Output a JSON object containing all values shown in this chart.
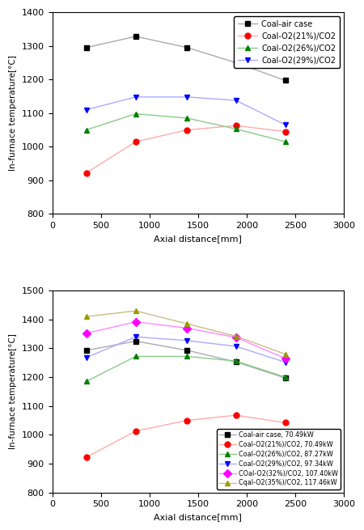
{
  "top_chart": {
    "x": [
      350,
      860,
      1390,
      1890,
      2400
    ],
    "series": [
      {
        "label": "Coal-air case",
        "line_color": "#aaaaaa",
        "marker": "s",
        "marker_fc": "black",
        "marker_ec": "black",
        "values": [
          1295,
          1328,
          1295,
          1250,
          1197
        ]
      },
      {
        "label": "Coal-O2(21%)/CO2",
        "line_color": "#ffaaaa",
        "marker": "o",
        "marker_fc": "red",
        "marker_ec": "red",
        "values": [
          922,
          1015,
          1050,
          1063,
          1045
        ]
      },
      {
        "label": "Coal-O2(26%)/CO2",
        "line_color": "#88cc88",
        "marker": "^",
        "marker_fc": "green",
        "marker_ec": "green",
        "values": [
          1050,
          1098,
          1085,
          1053,
          1015
        ]
      },
      {
        "label": "Coal-O2(29%)/CO2",
        "line_color": "#aaaaff",
        "marker": "v",
        "marker_fc": "blue",
        "marker_ec": "blue",
        "values": [
          1110,
          1148,
          1148,
          1138,
          1065
        ]
      }
    ],
    "ylim": [
      800,
      1400
    ],
    "yticks": [
      800,
      900,
      1000,
      1100,
      1200,
      1300,
      1400
    ],
    "xlim": [
      0,
      3000
    ],
    "xticks": [
      0,
      500,
      1000,
      1500,
      2000,
      2500,
      3000
    ],
    "ylabel": "In-furnace temperature[°C]",
    "xlabel": "Axial distance[mm]",
    "legend_loc": "upper right"
  },
  "bottom_chart": {
    "x": [
      350,
      860,
      1390,
      1890,
      2400
    ],
    "series": [
      {
        "label": "Coal-air case, 70.49kW",
        "line_color": "#aaaaaa",
        "marker": "s",
        "marker_fc": "black",
        "marker_ec": "black",
        "values": [
          1293,
          1325,
          1293,
          1253,
          1197
        ]
      },
      {
        "label": "Coal-O2(21%)/CO2, 70.49kW",
        "line_color": "#ffaaaa",
        "marker": "o",
        "marker_fc": "red",
        "marker_ec": "red",
        "values": [
          922,
          1013,
          1050,
          1068,
          1042
        ]
      },
      {
        "label": "Coal-O2(26%)/CO2, 87.27kW",
        "line_color": "#88cc88",
        "marker": "^",
        "marker_fc": "green",
        "marker_ec": "green",
        "values": [
          1185,
          1272,
          1272,
          1256,
          1200
        ]
      },
      {
        "label": "Coal-O2(29%)/CO2, 97.34kW",
        "line_color": "#aaaaff",
        "marker": "v",
        "marker_fc": "blue",
        "marker_ec": "blue",
        "values": [
          1268,
          1340,
          1327,
          1307,
          1252
        ]
      },
      {
        "label": "COal-O2(32%)/CO2, 107.40kW",
        "line_color": "#ff88ff",
        "marker": "D",
        "marker_fc": "#ff00ff",
        "marker_ec": "#ff00ff",
        "values": [
          1352,
          1392,
          1370,
          1338,
          1265
        ]
      },
      {
        "label": "Cqal-O2(35%)/CO2, 117.46kW",
        "line_color": "#ccbb88",
        "marker": "^",
        "marker_fc": "#999900",
        "marker_ec": "#999900",
        "values": [
          1410,
          1430,
          1385,
          1342,
          1280
        ]
      }
    ],
    "ylim": [
      800,
      1500
    ],
    "yticks": [
      800,
      900,
      1000,
      1100,
      1200,
      1300,
      1400,
      1500
    ],
    "xlim": [
      0,
      3000
    ],
    "xticks": [
      0,
      500,
      1000,
      1500,
      2000,
      2500,
      3000
    ],
    "ylabel": "In-furnace temperature[°C]",
    "xlabel": "Axial distance[mm]",
    "legend_loc": "lower right"
  },
  "figure_bg": "#ffffff"
}
